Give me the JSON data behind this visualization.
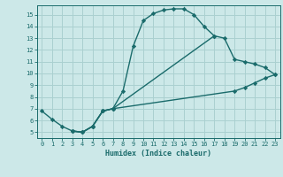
{
  "xlabel": "Humidex (Indice chaleur)",
  "ylabel": "",
  "xlim": [
    -0.5,
    23.5
  ],
  "ylim": [
    4.5,
    15.8
  ],
  "xticks": [
    0,
    1,
    2,
    3,
    4,
    5,
    6,
    7,
    8,
    9,
    10,
    11,
    12,
    13,
    14,
    15,
    16,
    17,
    18,
    19,
    20,
    21,
    22,
    23
  ],
  "yticks": [
    5,
    6,
    7,
    8,
    9,
    10,
    11,
    12,
    13,
    14,
    15
  ],
  "background_color": "#cce8e8",
  "grid_color": "#aad0d0",
  "line_color": "#1a6b6b",
  "curves": [
    {
      "x": [
        0,
        1,
        2,
        3,
        4,
        5,
        6,
        7,
        8,
        9,
        10,
        11,
        12,
        13,
        14,
        15,
        16,
        17
      ],
      "y": [
        6.8,
        6.1,
        5.5,
        5.1,
        5.0,
        5.5,
        6.8,
        7.0,
        8.5,
        12.3,
        14.5,
        15.1,
        15.4,
        15.5,
        15.5,
        15.0,
        14.0,
        13.2
      ]
    },
    {
      "x": [
        3,
        4,
        5,
        6,
        7,
        17,
        18,
        19,
        20,
        21,
        22,
        23
      ],
      "y": [
        5.1,
        5.0,
        5.5,
        6.8,
        7.0,
        13.2,
        13.0,
        11.2,
        11.0,
        10.8,
        10.5,
        9.9
      ]
    },
    {
      "x": [
        3,
        4,
        5,
        6,
        7,
        19,
        20,
        21,
        22,
        23
      ],
      "y": [
        5.1,
        5.0,
        5.5,
        6.8,
        7.0,
        8.5,
        8.8,
        9.2,
        9.6,
        9.9
      ]
    }
  ]
}
